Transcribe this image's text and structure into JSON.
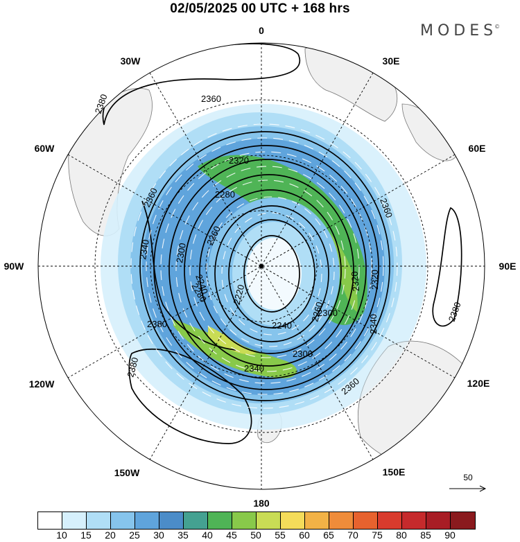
{
  "title": "02/05/2025  00 UTC  + 168 hrs",
  "brand": "MODES",
  "brand_mark": "©",
  "longitude_labels": {
    "lon_0": "0",
    "lon_30e": "30E",
    "lon_60e": "60E",
    "lon_90e": "90E",
    "lon_120e": "120E",
    "lon_150e": "150E",
    "lon_180": "180",
    "lon_150w": "150W",
    "lon_120w": "120W",
    "lon_90w": "90W",
    "lon_60w": "60W",
    "lon_30w": "30W"
  },
  "contour_labels": [
    "2380",
    "2360",
    "2360",
    "2340",
    "2320",
    "2300",
    "2280",
    "2260",
    "2240",
    "2220",
    "2240",
    "2260",
    "2280",
    "2300",
    "2320",
    "2340",
    "2360",
    "2360",
    "2380",
    "2380",
    "2380",
    "2340",
    "2320",
    "2300"
  ],
  "wind_reference": {
    "label": "50"
  },
  "colorbar": {
    "labels": [
      "10",
      "15",
      "20",
      "25",
      "30",
      "35",
      "40",
      "45",
      "50",
      "55",
      "60",
      "65",
      "70",
      "75",
      "80",
      "85",
      "90"
    ],
    "colors": [
      "#ffffff",
      "#d6f0fc",
      "#b0def6",
      "#86c4ec",
      "#5fa4dc",
      "#4b8cc8",
      "#44a191",
      "#4fb456",
      "#88c94a",
      "#c9dc55",
      "#f4dc5a",
      "#f2b246",
      "#ef8c3a",
      "#e7622e",
      "#d93b2d",
      "#c62a2c",
      "#a81d25",
      "#8a1a1e"
    ]
  },
  "colors": {
    "land": "#f0f0f0",
    "land_outline": "#777777",
    "contour": "#000000"
  }
}
